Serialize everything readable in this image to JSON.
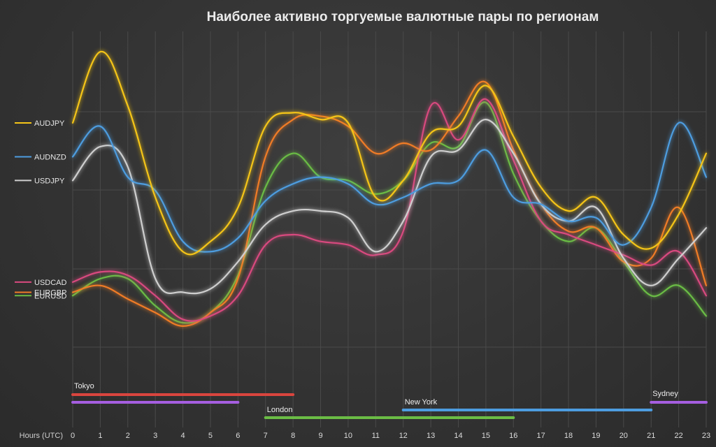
{
  "chart_data": {
    "type": "line",
    "title": "Наиболее активно торгуемые валютные пары по регионам",
    "xlabel": "Hours (UTC)",
    "ylabel": "",
    "x": [
      0,
      1,
      2,
      3,
      4,
      5,
      6,
      7,
      8,
      9,
      10,
      11,
      12,
      13,
      14,
      15,
      16,
      17,
      18,
      19,
      20,
      21,
      22,
      23
    ],
    "ylim": [
      0,
      100
    ],
    "grid": true,
    "legend_position": "left",
    "series": [
      {
        "name": "AUDJPY",
        "color": "#f5c518",
        "values": [
          73,
          94,
          78,
          51,
          35,
          38,
          48,
          72,
          76,
          74,
          73,
          51,
          56,
          70,
          72,
          84,
          69,
          54,
          47,
          51,
          40,
          36,
          46,
          64
        ]
      },
      {
        "name": "AUDNZD",
        "color": "#4d9de0",
        "values": [
          63,
          72,
          57,
          53,
          38,
          35,
          39,
          50,
          55,
          57,
          55,
          49,
          51,
          55,
          56,
          65,
          51,
          49,
          44,
          45,
          37,
          48,
          73,
          57
        ]
      },
      {
        "name": "USDJPY",
        "color": "#cfcfcf",
        "values": [
          56,
          66,
          60,
          27,
          23,
          24,
          32,
          43,
          47,
          47,
          45,
          35,
          44,
          63,
          65,
          74,
          64,
          49,
          44,
          48,
          33,
          25,
          33,
          42
        ]
      },
      {
        "name": "USDCAD",
        "color": "#d94a7f",
        "values": [
          26,
          29,
          28,
          22,
          15,
          16,
          22,
          37,
          40,
          38,
          37,
          34,
          41,
          78,
          68,
          80,
          62,
          44,
          40,
          37,
          34,
          31,
          35,
          22
        ]
      },
      {
        "name": "EURGBP",
        "color": "#f07b28",
        "values": [
          23,
          25,
          21,
          17,
          13,
          17,
          27,
          63,
          74,
          75,
          72,
          64,
          67,
          65,
          75,
          85,
          65,
          49,
          41,
          42,
          32,
          33,
          48,
          25
        ]
      },
      {
        "name": "EURUSD",
        "color": "#6bbd45",
        "values": [
          22,
          27,
          27,
          19,
          14,
          17,
          28,
          54,
          64,
          57,
          56,
          52,
          56,
          67,
          66,
          79,
          58,
          44,
          38,
          42,
          32,
          22,
          25,
          16
        ]
      }
    ],
    "sessions": [
      {
        "name": "Tokyo",
        "start": 0,
        "end": 8,
        "color": "#d9453e",
        "label_shown": true
      },
      {
        "name": "",
        "start": 0,
        "end": 6,
        "color": "#a55ee0",
        "label_shown": false
      },
      {
        "name": "London",
        "start": 7,
        "end": 16,
        "color": "#6bbd45",
        "label_shown": true
      },
      {
        "name": "New York",
        "start": 12,
        "end": 21,
        "color": "#4d9de0",
        "label_shown": true
      },
      {
        "name": "Sydney",
        "start": 21,
        "end": 23,
        "color": "#a55ee0",
        "label_shown": true
      }
    ]
  }
}
